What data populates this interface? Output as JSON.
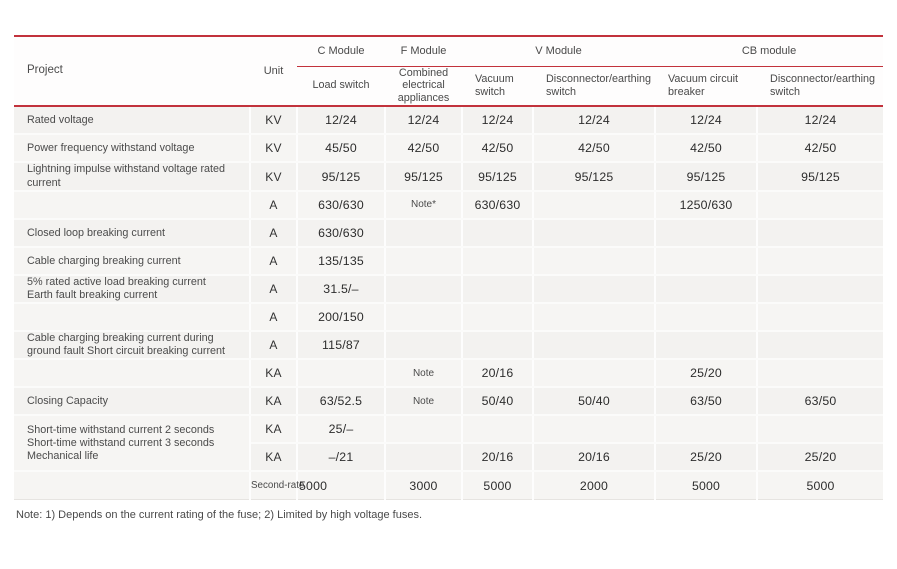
{
  "colors": {
    "accent_red": "#c2323c",
    "cell_bg": "#f4f3f1",
    "text_dark": "#2f2f2f",
    "text_label": "#4b4b4b"
  },
  "table": {
    "header": {
      "project": "Project",
      "unit": "Unit",
      "groups": [
        {
          "label": "C Module",
          "cols": [
            "Load switch"
          ]
        },
        {
          "label": "F Module",
          "cols": [
            "Combined electrical appliances"
          ]
        },
        {
          "label": "V Module",
          "cols": [
            "Vacuum switch",
            "Disconnector/earthing switch"
          ]
        },
        {
          "label": "CB module",
          "cols": [
            "Vacuum circuit breaker",
            "Disconnector/earthing switch"
          ]
        }
      ]
    },
    "rows": [
      {
        "project": "Rated voltage",
        "unit": "KV",
        "values": [
          "12/24",
          "12/24",
          "12/24",
          "12/24",
          "12/24",
          "12/24"
        ]
      },
      {
        "project": "Power frequency withstand voltage",
        "unit": "KV",
        "values": [
          "45/50",
          "42/50",
          "42/50",
          "42/50",
          "42/50",
          "42/50"
        ]
      },
      {
        "project": "Lightning impulse withstand voltage rated current",
        "unit": "KV",
        "values": [
          "95/125",
          "95/125",
          "95/125",
          "95/125",
          "95/125",
          "95/125"
        ]
      },
      {
        "project": "",
        "unit": "A",
        "values": [
          "630/630",
          "Note*",
          "630/630",
          "",
          "1250/630",
          ""
        ]
      },
      {
        "project": "Closed loop breaking current",
        "unit": "A",
        "values": [
          "630/630",
          "",
          "",
          "",
          "",
          ""
        ]
      },
      {
        "project": "Cable charging breaking current",
        "unit": "A",
        "values": [
          "135/135",
          "",
          "",
          "",
          "",
          ""
        ]
      },
      {
        "project": "5% rated active load breaking current Earth fault breaking current",
        "unit": "A",
        "values": [
          "31.5/–",
          "",
          "",
          "",
          "",
          ""
        ]
      },
      {
        "project": "",
        "unit": "A",
        "values": [
          "200/150",
          "",
          "",
          "",
          "",
          ""
        ]
      },
      {
        "project": "Cable charging breaking current during ground fault Short circuit breaking current",
        "unit": "A",
        "values": [
          "115/87",
          "",
          "",
          "",
          "",
          ""
        ]
      },
      {
        "project": "",
        "unit": "KA",
        "values": [
          "",
          "Note",
          "20/16",
          "",
          "25/20",
          ""
        ]
      },
      {
        "project": "Closing Capacity",
        "unit": "KA",
        "values": [
          "63/52.5",
          "Note",
          "50/40",
          "50/40",
          "63/50",
          "63/50"
        ]
      },
      {
        "project": "Short-time withstand current 2 seconds Short-time withstand current 3 seconds Mechanical life",
        "unit": "KA",
        "values": [
          "25/–",
          "",
          "",
          "",
          "",
          ""
        ],
        "project_rowspan": 2
      },
      {
        "project": "",
        "unit": "KA",
        "values": [
          "–/21",
          "",
          "20/16",
          "20/16",
          "25/20",
          "25/20"
        ],
        "project_skip": true
      },
      {
        "project": "",
        "unit": "Second-rate",
        "values": [
          "5000",
          "3000",
          "5000",
          "2000",
          "5000",
          "5000"
        ]
      }
    ],
    "note": "Note: 1) Depends on the current rating of the fuse; 2) Limited by high voltage fuses."
  }
}
